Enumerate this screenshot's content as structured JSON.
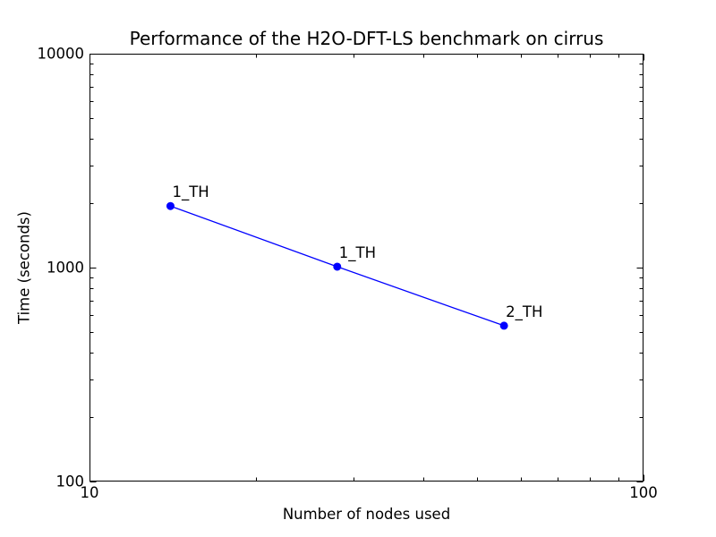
{
  "title": "Performance of the H2O-DFT-LS benchmark on cirrus",
  "chart_data": {
    "type": "line",
    "title": "Performance of the H2O-DFT-LS benchmark on cirrus",
    "xlabel": "Number of nodes used",
    "ylabel": "Time (seconds)",
    "xscale": "log",
    "yscale": "log",
    "xlim": [
      10,
      100
    ],
    "ylim": [
      100,
      10000
    ],
    "grid": false,
    "legend": "none",
    "line_color": "#0000ff",
    "marker": "circle",
    "series": [
      {
        "name": "H2O-DFT-LS",
        "points": [
          {
            "x": 14,
            "y": 1940,
            "label": "1_TH"
          },
          {
            "x": 28,
            "y": 1010,
            "label": "1_TH"
          },
          {
            "x": 56,
            "y": 535,
            "label": "2_TH"
          }
        ]
      }
    ],
    "x_ticks": [
      {
        "value": 10,
        "label": "10"
      },
      {
        "value": 100,
        "label": "100"
      }
    ],
    "y_ticks": [
      {
        "value": 100,
        "label": "100"
      },
      {
        "value": 1000,
        "label": "1000"
      },
      {
        "value": 10000,
        "label": "10000"
      }
    ],
    "x_minor_ticks": [
      20,
      30,
      40,
      50,
      60,
      70,
      80,
      90
    ],
    "y_minor_ticks": [
      200,
      300,
      400,
      500,
      600,
      700,
      800,
      900,
      2000,
      3000,
      4000,
      5000,
      6000,
      7000,
      8000,
      9000
    ]
  }
}
